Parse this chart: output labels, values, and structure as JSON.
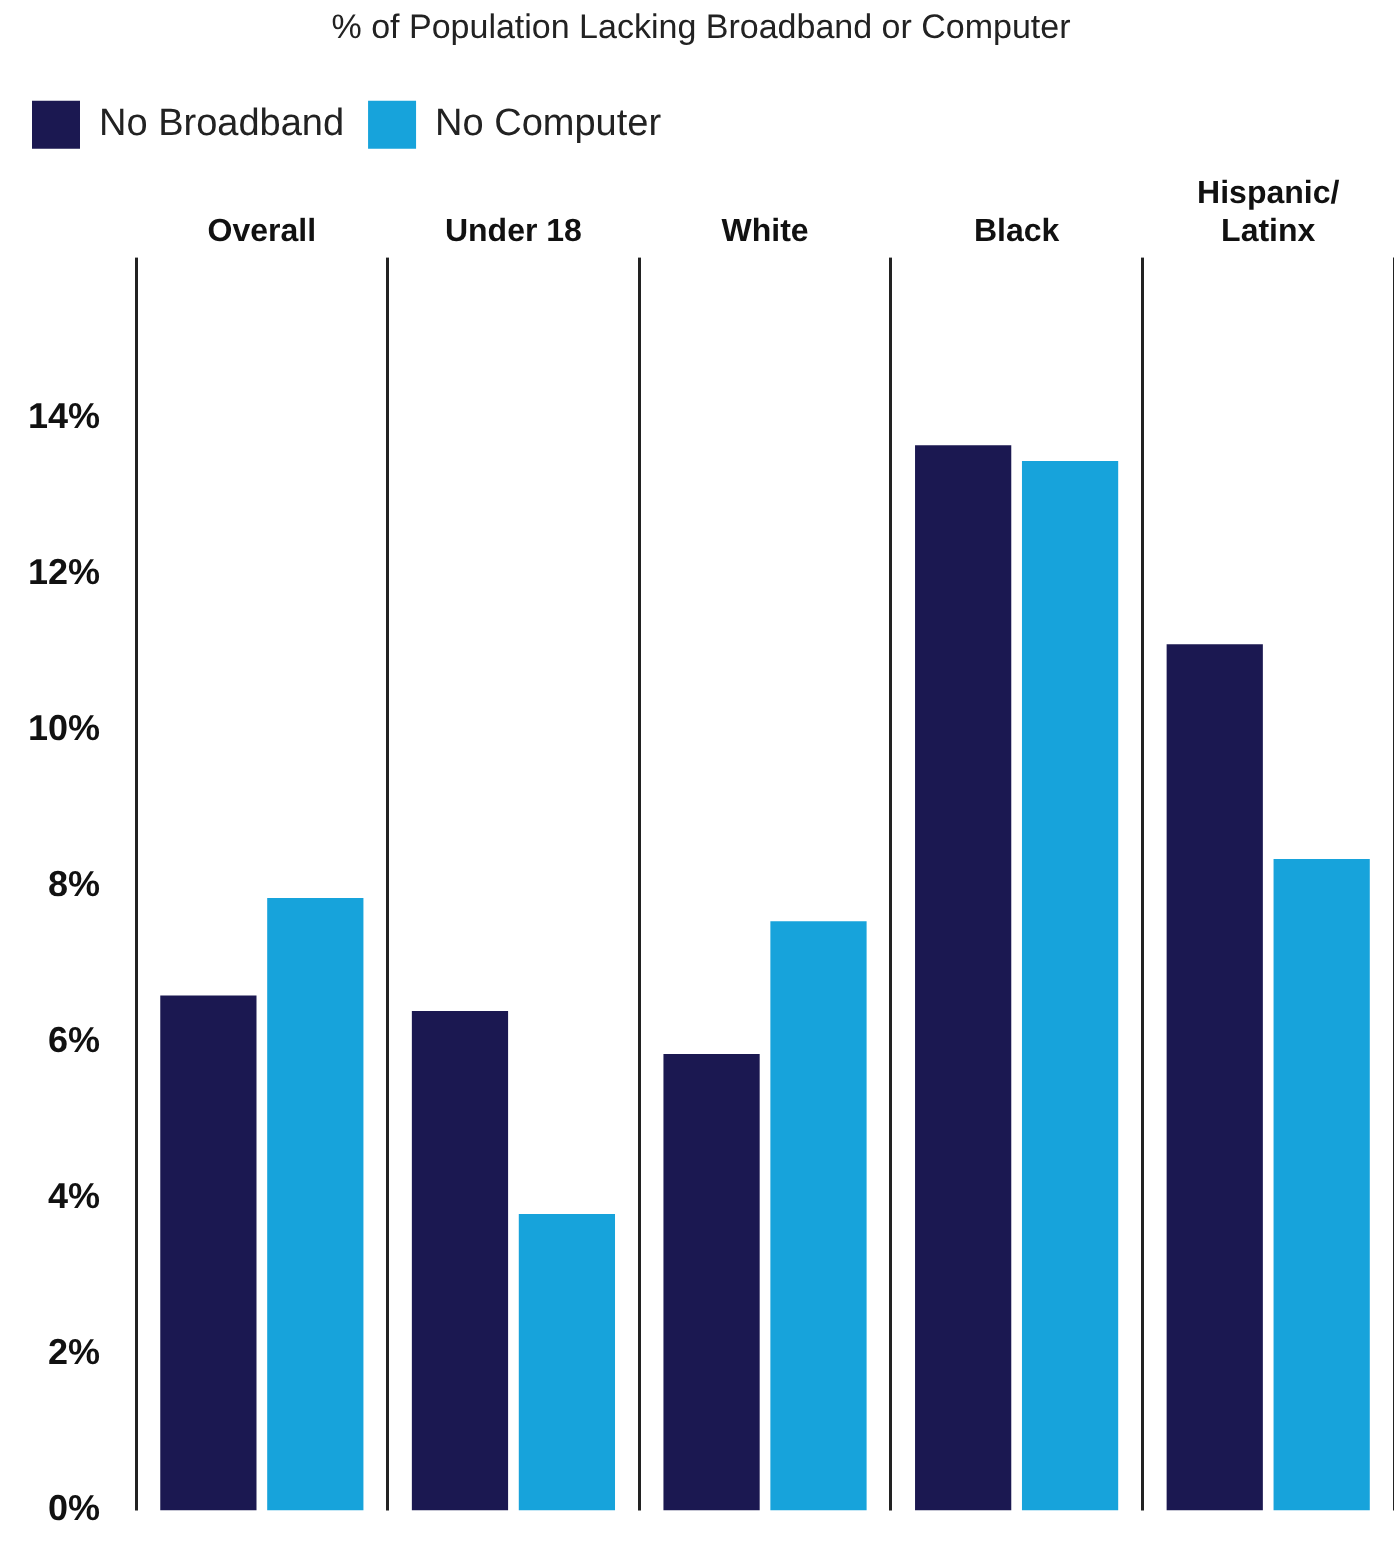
{
  "chart_data": {
    "type": "bar",
    "subtitle": "% of Population Lacking Broadband or Computer",
    "categories": [
      "Overall",
      "Under 18",
      "White",
      "Black",
      "Hispanic/\nLatinx"
    ],
    "series": [
      {
        "name": "No Broadband",
        "color": "#1b1851",
        "values": [
          6.6,
          6.4,
          5.85,
          13.65,
          11.1
        ]
      },
      {
        "name": "No Computer",
        "color": "#17a3db",
        "values": [
          7.85,
          3.8,
          7.55,
          13.45,
          8.35
        ]
      }
    ],
    "ylim": [
      0,
      15.8
    ],
    "yticks": [
      {
        "value": 0,
        "label": "0%"
      },
      {
        "value": 2,
        "label": "2%"
      },
      {
        "value": 4,
        "label": "4%"
      },
      {
        "value": 6,
        "label": "6%"
      },
      {
        "value": 8,
        "label": "8%"
      },
      {
        "value": 10,
        "label": "10%"
      },
      {
        "value": 12,
        "label": "12%"
      },
      {
        "value": 14,
        "label": "14%"
      }
    ],
    "grid": "x",
    "legend": "top left"
  }
}
